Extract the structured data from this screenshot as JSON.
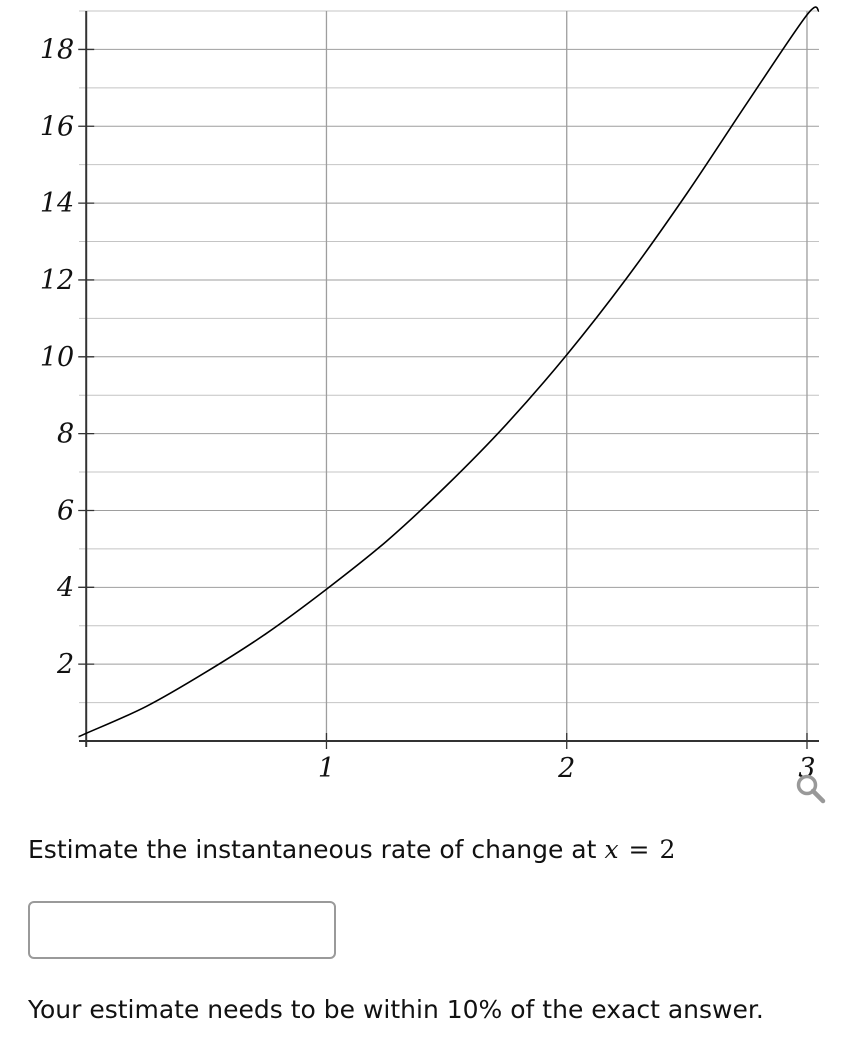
{
  "chart_data": {
    "type": "line",
    "xlim": [
      -0.03,
      3.05
    ],
    "ylim": [
      0,
      19
    ],
    "x_ticks": [
      1,
      2,
      3
    ],
    "x_tick_labels": [
      "1",
      "2",
      "3"
    ],
    "y_ticks": [
      2,
      4,
      6,
      8,
      10,
      12,
      14,
      16,
      18
    ],
    "y_tick_labels": [
      "2",
      "4",
      "6",
      "8",
      "10",
      "12",
      "14",
      "16",
      "18"
    ],
    "x_grid_step": 1,
    "y_grid_step": 1,
    "grid": true,
    "series": [
      {
        "x": [
          -0.03,
          0,
          0.25,
          0.5,
          0.75,
          1,
          1.25,
          1.5,
          1.75,
          2,
          2.25,
          2.5,
          2.75,
          3,
          3.05
        ],
        "y": [
          0.12,
          0.2,
          0.9,
          1.8,
          2.8,
          3.95,
          5.2,
          6.65,
          8.25,
          10.05,
          12.05,
          14.25,
          16.6,
          18.9,
          19.0
        ]
      }
    ],
    "colors": {
      "grid_major": "#9e9e9e",
      "grid_minor": "#c4c4c4",
      "axis": "#333333",
      "curve": "#000000"
    }
  },
  "question": {
    "text": "Estimate the instantaneous rate of change at",
    "variable": "x",
    "equals": "=",
    "value": "2"
  },
  "answer": {
    "value": "",
    "placeholder": ""
  },
  "hint": "Your estimate needs to be within 10% of the exact answer.",
  "icons": {
    "zoom": "magnifier-icon"
  }
}
